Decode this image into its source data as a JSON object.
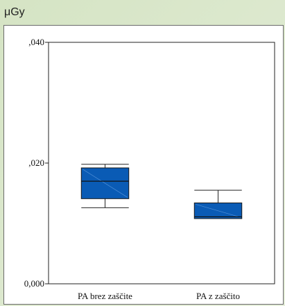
{
  "chart_data": {
    "type": "box",
    "unit_title": "μGy",
    "categories": [
      "PA brez zaščite",
      "PA z zaščito"
    ],
    "boxes": [
      {
        "name": "PA brez zaščite",
        "min": 0.0126,
        "q1": 0.0141,
        "median": 0.017,
        "q3": 0.0192,
        "max": 0.0198
      },
      {
        "name": "PA z zaščito",
        "min": 0.0108,
        "q1": 0.0108,
        "median": 0.0111,
        "q3": 0.0134,
        "max": 0.0155
      }
    ],
    "ylim": [
      0,
      0.04
    ],
    "yticks": [
      {
        "value": 0,
        "label": "0,000"
      },
      {
        "value": 0.02,
        "label": ",020"
      },
      {
        "value": 0.04,
        "label": ",040"
      }
    ],
    "box_color": "#0a5bb5",
    "grid": false
  }
}
